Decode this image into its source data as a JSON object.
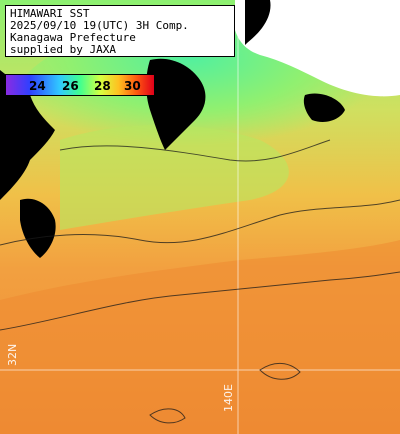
{
  "title_box": {
    "line1": "HIMAWARI SST",
    "line2": "2025/09/10 19(UTC) 3H Comp.",
    "line3": "Kanagawa Prefecture",
    "line4": "supplied by JAXA"
  },
  "legend": {
    "ticks": [
      "24",
      "26",
      "28",
      "30"
    ],
    "colors": [
      "#8a2be2",
      "#3040ff",
      "#30c8ff",
      "#40ff90",
      "#d8ff40",
      "#ffc020",
      "#ff5a10",
      "#e0001a"
    ]
  },
  "grid_labels": {
    "lat_label": "32N",
    "lon_label": "140E"
  },
  "colors": {
    "land": "#000000",
    "missing": "#ffffff",
    "coastal_cool": "#7ef07a",
    "mid_warm": "#f0b040",
    "offshore_warm": "#f08a30"
  }
}
